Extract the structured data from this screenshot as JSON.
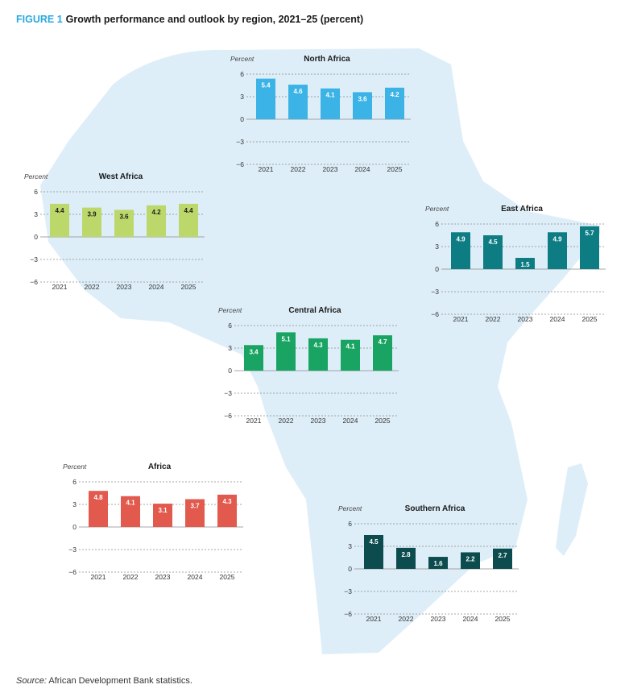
{
  "header": {
    "figure_label": "FIGURE 1",
    "title": "Growth performance and outlook by region, 2021–25 (percent)"
  },
  "source": {
    "label": "Source:",
    "text": "African Development Bank statistics."
  },
  "colors": {
    "map": "#deeef8",
    "north": "#3bb3e6",
    "west": "#bcd86b",
    "east": "#0d7d83",
    "central": "#1aa463",
    "africa": "#e25a4e",
    "southern": "#0c4c4e"
  },
  "chart_data": [
    {
      "id": "north",
      "type": "bar",
      "title": "North Africa",
      "ylabel": "Percent",
      "categories": [
        "2021",
        "2022",
        "2023",
        "2024",
        "2025"
      ],
      "values": [
        5.4,
        4.6,
        4.1,
        3.6,
        4.2
      ],
      "value_labels": [
        "5.4",
        "4.6",
        "4.1",
        "3.6",
        "4.2"
      ],
      "ylim": [
        -6,
        6
      ],
      "yticks": [
        6,
        3,
        0,
        -3,
        -6
      ],
      "ytick_labels": [
        "6",
        "3",
        "0",
        "−3",
        "−6"
      ],
      "label_color": "#ffffff",
      "color_key": "north"
    },
    {
      "id": "west",
      "type": "bar",
      "title": "West Africa",
      "ylabel": "Percent",
      "categories": [
        "2021",
        "2022",
        "2023",
        "2024",
        "2025"
      ],
      "values": [
        4.4,
        3.9,
        3.6,
        4.2,
        4.4
      ],
      "value_labels": [
        "4.4",
        "3.9",
        "3.6",
        "4.2",
        "4.4"
      ],
      "ylim": [
        -6,
        6
      ],
      "yticks": [
        6,
        3,
        0,
        -3,
        -6
      ],
      "ytick_labels": [
        "6",
        "3",
        "0",
        "−3",
        "−6"
      ],
      "label_color": "#1a1a1a",
      "color_key": "west"
    },
    {
      "id": "east",
      "type": "bar",
      "title": "East Africa",
      "ylabel": "Percent",
      "categories": [
        "2021",
        "2022",
        "2023",
        "2024",
        "2025"
      ],
      "values": [
        4.9,
        4.5,
        1.5,
        4.9,
        5.7
      ],
      "value_labels": [
        "4.9",
        "4.5",
        "1.5",
        "4.9",
        "5.7"
      ],
      "ylim": [
        -6,
        6
      ],
      "yticks": [
        6,
        3,
        0,
        -3,
        -6
      ],
      "ytick_labels": [
        "6",
        "3",
        "0",
        "−3",
        "−6"
      ],
      "label_color": "#ffffff",
      "color_key": "east"
    },
    {
      "id": "central",
      "type": "bar",
      "title": "Central Africa",
      "ylabel": "Percent",
      "categories": [
        "2021",
        "2022",
        "2023",
        "2024",
        "2025"
      ],
      "values": [
        3.4,
        5.1,
        4.3,
        4.1,
        4.7
      ],
      "value_labels": [
        "3.4",
        "5.1",
        "4.3",
        "4.1",
        "4.7"
      ],
      "ylim": [
        -6,
        6
      ],
      "yticks": [
        6,
        3,
        0,
        -3,
        -6
      ],
      "ytick_labels": [
        "6",
        "3",
        "0",
        "−3",
        "−6"
      ],
      "label_color": "#ffffff",
      "color_key": "central"
    },
    {
      "id": "africa",
      "type": "bar",
      "title": "Africa",
      "ylabel": "Percent",
      "categories": [
        "2021",
        "2022",
        "2023",
        "2024",
        "2025"
      ],
      "values": [
        4.8,
        4.1,
        3.1,
        3.7,
        4.3
      ],
      "value_labels": [
        "4.8",
        "4.1",
        "3.1",
        "3.7",
        "4.3"
      ],
      "ylim": [
        -6,
        6
      ],
      "yticks": [
        6,
        3,
        0,
        -3,
        -6
      ],
      "ytick_labels": [
        "6",
        "3",
        "0",
        "−3",
        "−6"
      ],
      "label_color": "#ffffff",
      "color_key": "africa"
    },
    {
      "id": "southern",
      "type": "bar",
      "title": "Southern Africa",
      "ylabel": "Percent",
      "categories": [
        "2021",
        "2022",
        "2023",
        "2024",
        "2025"
      ],
      "values": [
        4.5,
        2.8,
        1.6,
        2.2,
        2.7
      ],
      "value_labels": [
        "4.5",
        "2.8",
        "1.6",
        "2.2",
        "2.7"
      ],
      "ylim": [
        -6,
        6
      ],
      "yticks": [
        6,
        3,
        0,
        -3,
        -6
      ],
      "ytick_labels": [
        "6",
        "3",
        "0",
        "−3",
        "−6"
      ],
      "label_color": "#ffffff",
      "color_key": "southern"
    }
  ]
}
